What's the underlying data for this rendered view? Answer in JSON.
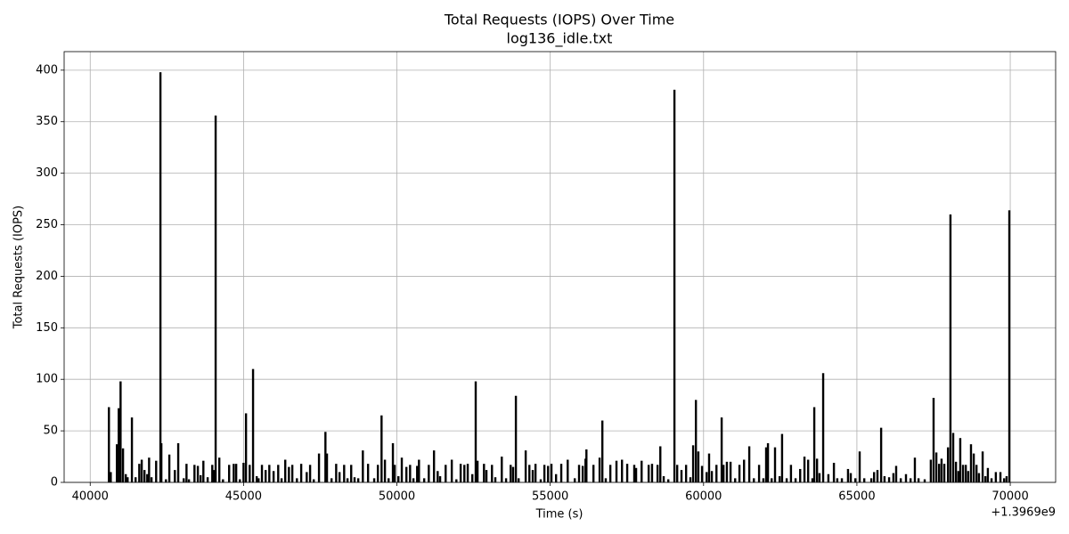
{
  "chart_data": {
    "type": "bar",
    "title": "Total Requests (IOPS) Over Time",
    "subtitle": "log136_idle.txt",
    "x_label": "Time (s)",
    "y_label": "Total Requests (IOPS)",
    "x_offset_label": "+1.3969e9",
    "color": "#000000",
    "grid": true,
    "xlim": [
      39150,
      71480
    ],
    "xticks": [
      40000,
      45000,
      50000,
      55000,
      60000,
      65000,
      70000
    ],
    "ylim": [
      0,
      418
    ],
    "yticks": [
      0,
      50,
      100,
      150,
      200,
      250,
      300,
      350,
      400
    ],
    "x": [
      40610,
      40670,
      40870,
      40930,
      40990,
      41070,
      41160,
      41220,
      41360,
      41480,
      41600,
      41680,
      41770,
      41860,
      41920,
      42000,
      42150,
      42290,
      42320,
      42470,
      42580,
      42760,
      42870,
      43050,
      43140,
      43220,
      43400,
      43510,
      43600,
      43690,
      43830,
      43980,
      44040,
      44090,
      44210,
      44330,
      44530,
      44680,
      44760,
      44880,
      45000,
      45080,
      45200,
      45310,
      45430,
      45490,
      45600,
      45720,
      45840,
      45980,
      46130,
      46240,
      46360,
      46480,
      46590,
      46740,
      46880,
      47060,
      47170,
      47290,
      47460,
      47670,
      47720,
      47870,
      48020,
      48130,
      48280,
      48390,
      48510,
      48620,
      48740,
      48890,
      49060,
      49260,
      49380,
      49500,
      49610,
      49730,
      49870,
      49930,
      50050,
      50160,
      50310,
      50430,
      50540,
      50660,
      50720,
      50890,
      51040,
      51210,
      51330,
      51410,
      51590,
      51790,
      51940,
      52080,
      52200,
      52310,
      52460,
      52570,
      52630,
      52840,
      52920,
      53100,
      53210,
      53420,
      53560,
      53710,
      53790,
      53880,
      53970,
      54200,
      54320,
      54430,
      54520,
      54690,
      54810,
      54930,
      55040,
      55190,
      55360,
      55570,
      55800,
      55940,
      56060,
      56150,
      56180,
      56410,
      56610,
      56700,
      56810,
      56960,
      57160,
      57340,
      57510,
      57740,
      57800,
      57980,
      58210,
      58320,
      58500,
      58590,
      58700,
      58850,
      59050,
      59140,
      59280,
      59430,
      59570,
      59660,
      59750,
      59830,
      59950,
      60100,
      60180,
      60270,
      60420,
      60590,
      60650,
      60760,
      60880,
      61030,
      61170,
      61320,
      61490,
      61640,
      61810,
      61950,
      62040,
      62100,
      62220,
      62330,
      62480,
      62560,
      62710,
      62850,
      63000,
      63150,
      63290,
      63410,
      63550,
      63610,
      63700,
      63780,
      63900,
      64070,
      64250,
      64360,
      64510,
      64710,
      64800,
      64950,
      65090,
      65240,
      65470,
      65560,
      65670,
      65790,
      65900,
      66050,
      66190,
      66280,
      66430,
      66600,
      66750,
      66890,
      67010,
      67210,
      67410,
      67500,
      67590,
      67680,
      67760,
      67850,
      67970,
      68050,
      68140,
      68230,
      68310,
      68370,
      68460,
      68550,
      68630,
      68720,
      68810,
      68900,
      68980,
      69100,
      69190,
      69270,
      69390,
      69530,
      69680,
      69800,
      69880,
      69970
    ],
    "values": [
      73,
      10,
      37,
      72,
      98,
      33,
      8,
      5,
      63,
      5,
      18,
      22,
      12,
      8,
      24,
      5,
      21,
      398,
      38,
      3,
      27,
      12,
      38,
      4,
      18,
      3,
      17,
      16,
      7,
      21,
      5,
      17,
      12,
      356,
      24,
      3,
      17,
      18,
      18,
      3,
      19,
      67,
      17,
      110,
      6,
      4,
      17,
      12,
      17,
      11,
      17,
      4,
      22,
      15,
      17,
      4,
      18,
      10,
      17,
      3,
      28,
      49,
      28,
      4,
      18,
      10,
      17,
      4,
      17,
      5,
      4,
      31,
      18,
      4,
      17,
      65,
      22,
      4,
      38,
      17,
      6,
      24,
      15,
      17,
      4,
      16,
      22,
      4,
      17,
      31,
      11,
      6,
      17,
      22,
      3,
      18,
      17,
      18,
      8,
      98,
      21,
      18,
      12,
      17,
      5,
      25,
      4,
      17,
      15,
      84,
      4,
      31,
      17,
      12,
      18,
      3,
      17,
      16,
      18,
      8,
      18,
      22,
      4,
      17,
      16,
      23,
      32,
      17,
      24,
      60,
      4,
      17,
      21,
      22,
      18,
      17,
      14,
      21,
      17,
      18,
      17,
      35,
      6,
      3,
      381,
      17,
      12,
      17,
      5,
      36,
      80,
      30,
      16,
      10,
      28,
      11,
      17,
      63,
      17,
      20,
      20,
      4,
      17,
      22,
      35,
      4,
      17,
      4,
      34,
      38,
      4,
      34,
      6,
      47,
      4,
      17,
      4,
      13,
      25,
      22,
      4,
      73,
      23,
      9,
      106,
      8,
      19,
      4,
      4,
      13,
      9,
      4,
      30,
      4,
      4,
      10,
      12,
      53,
      6,
      5,
      9,
      16,
      4,
      8,
      4,
      24,
      4,
      3,
      22,
      82,
      29,
      18,
      23,
      18,
      34,
      260,
      48,
      20,
      11,
      43,
      17,
      17,
      11,
      37,
      28,
      17,
      9,
      30,
      6,
      14,
      4,
      10,
      10,
      4,
      6,
      264
    ]
  }
}
